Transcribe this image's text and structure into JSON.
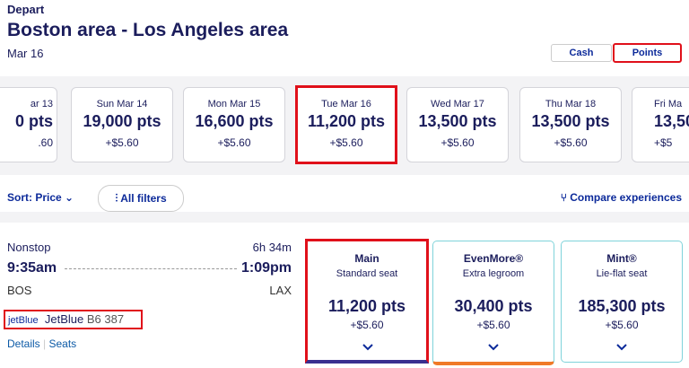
{
  "header": {
    "label": "Depart",
    "route": "Boston area - Los Angeles area",
    "date": "Mar 16"
  },
  "payment_toggle": {
    "cash": "Cash",
    "points": "Points"
  },
  "dates": [
    {
      "day": "ar 13",
      "points": "0 pts",
      "fee": ".60"
    },
    {
      "day": "Sun Mar 14",
      "points": "19,000 pts",
      "fee": "+$5.60"
    },
    {
      "day": "Mon Mar 15",
      "points": "16,600 pts",
      "fee": "+$5.60"
    },
    {
      "day": "Tue Mar 16",
      "points": "11,200 pts",
      "fee": "+$5.60"
    },
    {
      "day": "Wed Mar 17",
      "points": "13,500 pts",
      "fee": "+$5.60"
    },
    {
      "day": "Thu Mar 18",
      "points": "13,500 pts",
      "fee": "+$5.60"
    },
    {
      "day": "Fri Ma",
      "points": "13,50",
      "fee": "+$5"
    }
  ],
  "toolbar": {
    "sort": "Sort: Price",
    "filters": "All filters",
    "compare": "Compare experiences"
  },
  "flight": {
    "stops": "Nonstop",
    "duration": "6h 34m",
    "depart_time": "9:35am",
    "arrive_time": "1:09pm",
    "origin": "BOS",
    "destination": "LAX",
    "airline_logo": "jetBlue",
    "airline": "JetBlue",
    "flight_number": "B6 387",
    "links": [
      "Details",
      "Seats"
    ]
  },
  "fares": [
    {
      "name": "Main",
      "seat": "Standard seat",
      "points": "11,200 pts",
      "fee": "+$5.60"
    },
    {
      "name": "EvenMore®",
      "seat": "Extra legroom",
      "points": "30,400 pts",
      "fee": "+$5.60"
    },
    {
      "name": "Mint®",
      "seat": "Lie-flat seat",
      "points": "185,300 pts",
      "fee": "+$5.60"
    }
  ]
}
